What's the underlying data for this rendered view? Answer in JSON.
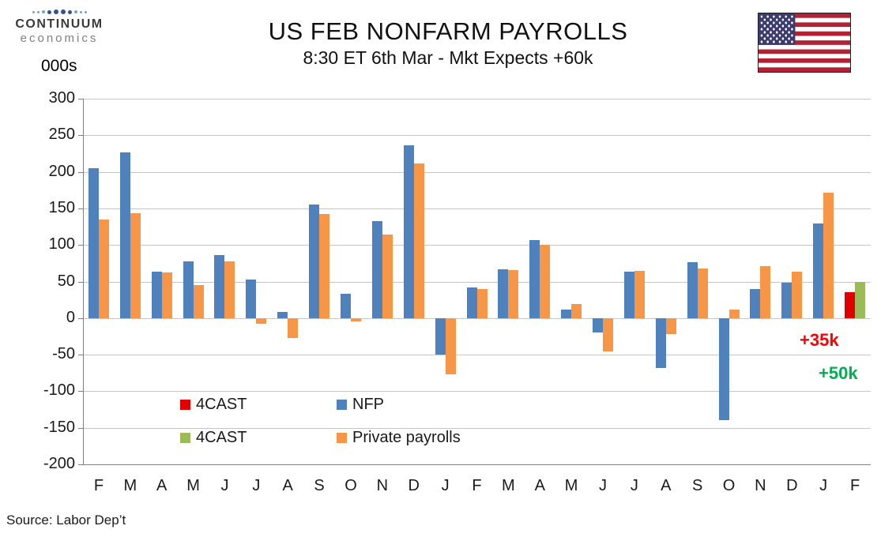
{
  "header": {
    "logo_line1": "CONTINUUM",
    "logo_line2": "economics",
    "units_label": "000s",
    "title": "US FEB NONFARM PAYROLLS",
    "subtitle": "8:30 ET 6th Mar - Mkt Expects +60k"
  },
  "chart_data": {
    "type": "bar",
    "categories": [
      "F",
      "M",
      "A",
      "M",
      "J",
      "J",
      "A",
      "S",
      "O",
      "N",
      "D",
      "J",
      "F",
      "M",
      "A",
      "M",
      "J",
      "J",
      "A",
      "S",
      "O",
      "N",
      "D",
      "J",
      "F"
    ],
    "series": [
      {
        "name": "NFP",
        "color": "#4f81bd",
        "values": [
          205,
          227,
          64,
          78,
          86,
          53,
          8,
          155,
          33,
          133,
          236,
          -50,
          42,
          67,
          107,
          12,
          -20,
          63,
          -68,
          76,
          -140,
          40,
          48,
          129,
          null
        ]
      },
      {
        "name": "Private payrolls",
        "color": "#f79646",
        "values": [
          135,
          143,
          62,
          45,
          78,
          -8,
          -27,
          142,
          -4,
          114,
          211,
          -77,
          40,
          66,
          100,
          19,
          -46,
          65,
          -22,
          68,
          12,
          71,
          63,
          172,
          null
        ]
      },
      {
        "name": "4CAST NFP",
        "color": "#e00000",
        "values": [
          null,
          null,
          null,
          null,
          null,
          null,
          null,
          null,
          null,
          null,
          null,
          null,
          null,
          null,
          null,
          null,
          null,
          null,
          null,
          null,
          null,
          null,
          null,
          null,
          35
        ]
      },
      {
        "name": "4CAST Private payrolls",
        "color": "#9bbb59",
        "values": [
          null,
          null,
          null,
          null,
          null,
          null,
          null,
          null,
          null,
          null,
          null,
          null,
          null,
          null,
          null,
          null,
          null,
          null,
          null,
          null,
          null,
          null,
          null,
          null,
          50
        ]
      }
    ],
    "ylim": [
      -200,
      300
    ],
    "ytick_step": 50,
    "grid": true,
    "legend_position": "inside-bottom-left",
    "annotations": [
      {
        "text": "+35k",
        "color": "#ff0000"
      },
      {
        "text": "+50k",
        "color": "#00b050"
      }
    ]
  },
  "legend": [
    {
      "label": "4CAST",
      "color": "#e00000"
    },
    {
      "label": "NFP",
      "color": "#4f81bd"
    },
    {
      "label": "4CAST",
      "color": "#9bbb59"
    },
    {
      "label": "Private payrolls",
      "color": "#f79646"
    }
  ],
  "source": "Source: Labor Dep’t"
}
